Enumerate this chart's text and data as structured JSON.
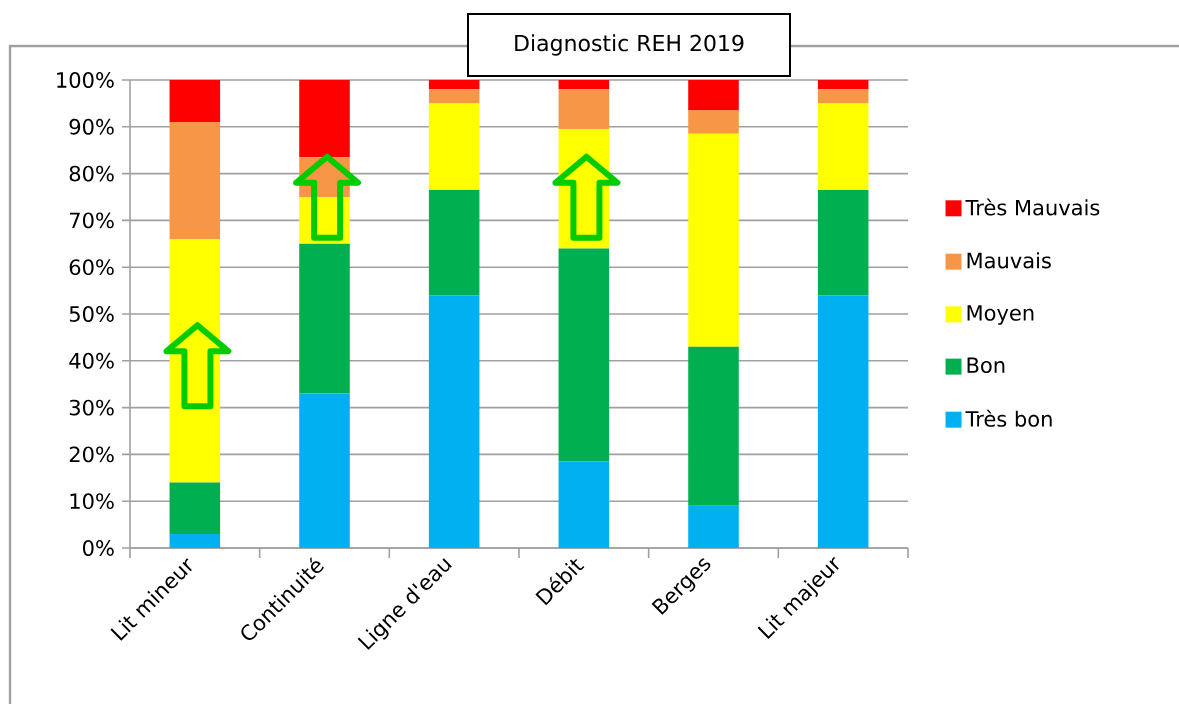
{
  "chart_data": {
    "type": "bar",
    "stacked": true,
    "title": "Diagnostic REH 2019",
    "categories": [
      "Lit mineur",
      "Continuité",
      "Ligne d'eau",
      "Débit",
      "Berges",
      "Lit majeur"
    ],
    "series": [
      {
        "name": "Très bon",
        "color": "#00b0f0",
        "values": [
          3,
          33,
          54,
          18.5,
          9,
          54
        ]
      },
      {
        "name": "Bon",
        "color": "#00b050",
        "values": [
          11,
          32,
          22.5,
          45.5,
          34,
          22.5
        ]
      },
      {
        "name": "Moyen",
        "color": "#ffff00",
        "values": [
          52,
          10,
          18.5,
          25.5,
          45.5,
          18.5
        ]
      },
      {
        "name": "Mauvais",
        "color": "#f79646",
        "values": [
          25,
          8.5,
          3,
          8.5,
          5,
          3
        ]
      },
      {
        "name": "Très Mauvais",
        "color": "#ff0000",
        "values": [
          9,
          16.5,
          2,
          2,
          6.5,
          2
        ]
      }
    ],
    "ylim": [
      0,
      100
    ],
    "yticks": [
      {
        "value": 0,
        "label": "0%"
      },
      {
        "value": 10,
        "label": "10%"
      },
      {
        "value": 20,
        "label": "20%"
      },
      {
        "value": 30,
        "label": "30%"
      },
      {
        "value": 40,
        "label": "40%"
      },
      {
        "value": 50,
        "label": "50%"
      },
      {
        "value": 60,
        "label": "60%"
      },
      {
        "value": 70,
        "label": "70%"
      },
      {
        "value": 80,
        "label": "80%"
      },
      {
        "value": 90,
        "label": "90%"
      },
      {
        "value": 100,
        "label": "100%"
      }
    ],
    "grid": "y",
    "legend": "right"
  }
}
